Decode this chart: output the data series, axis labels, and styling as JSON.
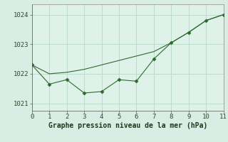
{
  "x": [
    0,
    1,
    2,
    3,
    4,
    5,
    6,
    7,
    8,
    9,
    10,
    11
  ],
  "line1_y": [
    1022.3,
    1021.65,
    1021.8,
    1021.35,
    1021.4,
    1021.8,
    1021.75,
    1022.5,
    1023.05,
    1023.4,
    1023.8,
    1024.0
  ],
  "line2_y": [
    1022.3,
    1022.0,
    1022.05,
    1022.15,
    1022.3,
    1022.45,
    1022.6,
    1022.75,
    1023.05,
    1023.4,
    1023.8,
    1024.0
  ],
  "line_color": "#2d6a2d",
  "marker": "D",
  "marker_size": 2.5,
  "xlim": [
    0,
    11
  ],
  "ylim": [
    1020.75,
    1024.35
  ],
  "yticks": [
    1021,
    1022,
    1023,
    1024
  ],
  "xticks": [
    0,
    1,
    2,
    3,
    4,
    5,
    6,
    7,
    8,
    9,
    10,
    11
  ],
  "xlabel": "Graphe pression niveau de la mer (hPa)",
  "background_color": "#d8ede4",
  "plot_bg_color": "#dff2ea",
  "grid_color": "#b8d8c8",
  "tick_fontsize": 6.5,
  "label_fontsize": 7
}
